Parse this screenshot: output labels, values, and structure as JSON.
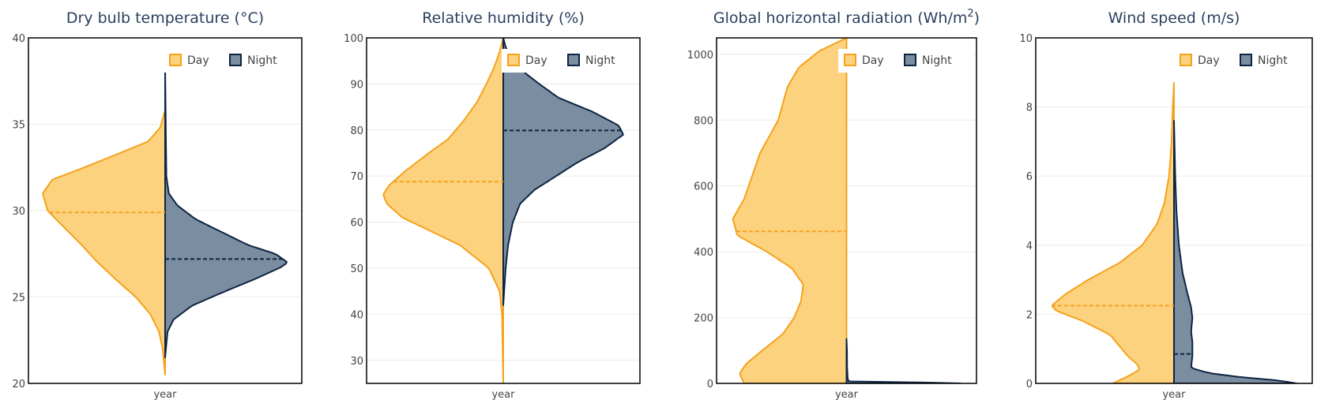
{
  "colors": {
    "day_fill": "#fcd27e",
    "day_line": "#f5a21d",
    "night_fill": "#7a8da1",
    "night_line": "#0d2443",
    "grid": "#ebebeb",
    "axis_text": "#444444",
    "title_text": "#2a3f5f",
    "frame": "#000000"
  },
  "legend": {
    "day": "Day",
    "night": "Night"
  },
  "chart_data": [
    {
      "type": "violin",
      "title": "Dry bulb temperature (°C)",
      "xlabel": "year",
      "ylim": [
        20,
        40
      ],
      "yticks": [
        20,
        25,
        30,
        35,
        40
      ],
      "day": {
        "name": "Day",
        "median": 29.9,
        "range": [
          20.5,
          35.8
        ],
        "density": [
          [
            20.5,
            0.0
          ],
          [
            22,
            0.02
          ],
          [
            23,
            0.05
          ],
          [
            24,
            0.12
          ],
          [
            25,
            0.24
          ],
          [
            26,
            0.4
          ],
          [
            27,
            0.55
          ],
          [
            28,
            0.68
          ],
          [
            29,
            0.82
          ],
          [
            30,
            0.96
          ],
          [
            31,
            1.0
          ],
          [
            31.8,
            0.92
          ],
          [
            32.5,
            0.66
          ],
          [
            33.3,
            0.38
          ],
          [
            34,
            0.14
          ],
          [
            34.8,
            0.04
          ],
          [
            35.8,
            0.0
          ]
        ]
      },
      "night": {
        "name": "Night",
        "median": 27.2,
        "range": [
          21.5,
          38.2
        ],
        "density": [
          [
            21.5,
            0.0
          ],
          [
            23,
            0.02
          ],
          [
            23.7,
            0.07
          ],
          [
            24.5,
            0.22
          ],
          [
            25.3,
            0.48
          ],
          [
            26,
            0.72
          ],
          [
            26.7,
            0.94
          ],
          [
            27,
            1.0
          ],
          [
            27.5,
            0.9
          ],
          [
            28,
            0.68
          ],
          [
            28.8,
            0.45
          ],
          [
            29.5,
            0.25
          ],
          [
            30.3,
            0.1
          ],
          [
            31,
            0.03
          ],
          [
            32,
            0.01
          ],
          [
            38.2,
            0.0
          ]
        ]
      }
    },
    {
      "type": "violin",
      "title": "Relative humidity (%)",
      "xlabel": "year",
      "ylim": [
        25,
        100
      ],
      "yticks": [
        30,
        40,
        50,
        60,
        70,
        80,
        90,
        100
      ],
      "day": {
        "name": "Day",
        "median": 68.8,
        "range": [
          25,
          100
        ],
        "density": [
          [
            25,
            0.0
          ],
          [
            40,
            0.01
          ],
          [
            45,
            0.03
          ],
          [
            50,
            0.12
          ],
          [
            55,
            0.36
          ],
          [
            58,
            0.6
          ],
          [
            61,
            0.84
          ],
          [
            64,
            0.97
          ],
          [
            66,
            1.0
          ],
          [
            68,
            0.95
          ],
          [
            71,
            0.82
          ],
          [
            75,
            0.62
          ],
          [
            78,
            0.46
          ],
          [
            82,
            0.33
          ],
          [
            86,
            0.22
          ],
          [
            90,
            0.14
          ],
          [
            94,
            0.07
          ],
          [
            97,
            0.03
          ],
          [
            100,
            0.0
          ]
        ]
      },
      "night": {
        "name": "Night",
        "median": 79.9,
        "range": [
          42,
          100
        ],
        "density": [
          [
            42,
            0.0
          ],
          [
            46,
            0.01
          ],
          [
            50,
            0.02
          ],
          [
            55,
            0.04
          ],
          [
            60,
            0.08
          ],
          [
            64,
            0.14
          ],
          [
            67,
            0.26
          ],
          [
            70,
            0.44
          ],
          [
            73,
            0.62
          ],
          [
            76,
            0.84
          ],
          [
            79,
            1.0
          ],
          [
            81,
            0.96
          ],
          [
            84,
            0.74
          ],
          [
            87,
            0.46
          ],
          [
            90,
            0.3
          ],
          [
            92,
            0.2
          ],
          [
            95,
            0.08
          ],
          [
            98,
            0.02
          ],
          [
            100,
            0.0
          ]
        ]
      }
    },
    {
      "type": "violin",
      "title": "Global horizontal radiation (Wh/m",
      "title_sup": "2",
      "title_close": ")",
      "xlabel": "year",
      "ylim": [
        0,
        1050
      ],
      "yticks": [
        0,
        200,
        400,
        600,
        800,
        1000
      ],
      "day": {
        "name": "Day",
        "median": 462,
        "range": [
          0,
          1050
        ],
        "density": [
          [
            0,
            0.9
          ],
          [
            30,
            0.94
          ],
          [
            60,
            0.88
          ],
          [
            100,
            0.74
          ],
          [
            150,
            0.56
          ],
          [
            200,
            0.46
          ],
          [
            250,
            0.4
          ],
          [
            300,
            0.38
          ],
          [
            350,
            0.48
          ],
          [
            400,
            0.7
          ],
          [
            450,
            0.96
          ],
          [
            500,
            1.0
          ],
          [
            560,
            0.9
          ],
          [
            620,
            0.84
          ],
          [
            700,
            0.76
          ],
          [
            800,
            0.6
          ],
          [
            900,
            0.52
          ],
          [
            960,
            0.42
          ],
          [
            1010,
            0.24
          ],
          [
            1050,
            0.0
          ]
        ]
      },
      "night": {
        "name": "Night",
        "median": 0,
        "range": [
          0,
          135
        ],
        "density": [
          [
            0,
            1.0
          ],
          [
            3,
            0.62
          ],
          [
            6,
            0.02
          ],
          [
            15,
            0.01
          ],
          [
            50,
            0.005
          ],
          [
            100,
            0.004
          ],
          [
            135,
            0.0
          ]
        ]
      }
    },
    {
      "type": "violin",
      "title": "Wind speed (m/s)",
      "xlabel": "year",
      "ylim": [
        0,
        10
      ],
      "yticks": [
        0,
        2,
        4,
        6,
        8,
        10
      ],
      "day": {
        "name": "Day",
        "median": 2.25,
        "range": [
          0,
          8.7
        ],
        "density": [
          [
            0,
            0.5
          ],
          [
            0.2,
            0.38
          ],
          [
            0.4,
            0.28
          ],
          [
            0.55,
            0.3
          ],
          [
            0.8,
            0.38
          ],
          [
            1.1,
            0.45
          ],
          [
            1.4,
            0.52
          ],
          [
            1.8,
            0.74
          ],
          [
            2.1,
            0.96
          ],
          [
            2.25,
            1.0
          ],
          [
            2.6,
            0.88
          ],
          [
            3.0,
            0.7
          ],
          [
            3.5,
            0.44
          ],
          [
            4.0,
            0.26
          ],
          [
            4.6,
            0.14
          ],
          [
            5.2,
            0.08
          ],
          [
            6.0,
            0.04
          ],
          [
            7.0,
            0.02
          ],
          [
            8.0,
            0.01
          ],
          [
            8.7,
            0.0
          ]
        ]
      },
      "night": {
        "name": "Night",
        "median": 0.85,
        "range": [
          0,
          7.6
        ],
        "density": [
          [
            0,
            1.0
          ],
          [
            0.08,
            0.86
          ],
          [
            0.18,
            0.55
          ],
          [
            0.3,
            0.28
          ],
          [
            0.45,
            0.14
          ],
          [
            0.8,
            0.15
          ],
          [
            1.2,
            0.15
          ],
          [
            1.5,
            0.14
          ],
          [
            1.9,
            0.15
          ],
          [
            2.2,
            0.14
          ],
          [
            2.6,
            0.11
          ],
          [
            3.2,
            0.07
          ],
          [
            4.0,
            0.04
          ],
          [
            5.0,
            0.02
          ],
          [
            6.0,
            0.01
          ],
          [
            7.6,
            0.0
          ]
        ]
      }
    }
  ]
}
